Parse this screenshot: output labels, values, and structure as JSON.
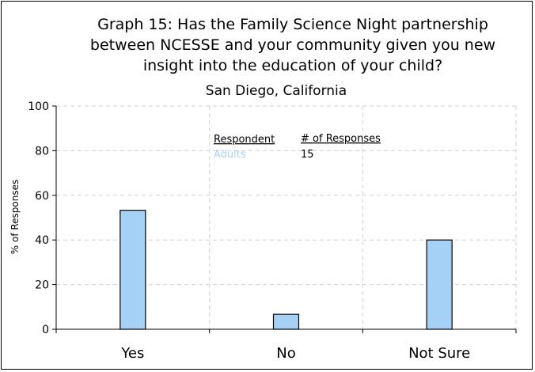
{
  "chart_data": {
    "type": "bar",
    "title_lines": [
      "Graph 15: Has the Family Science Night partnership",
      "between NCESSE and your community given you new",
      "insight into the education of your child?"
    ],
    "subtitle": "San Diego, California",
    "ylabel": "% of Responses",
    "xlabel": "",
    "ylim": [
      0,
      100
    ],
    "yticks": [
      0,
      20,
      40,
      60,
      80,
      100
    ],
    "categories": [
      "Yes",
      "No",
      "Not Sure"
    ],
    "values": [
      53.3,
      6.7,
      40.0
    ],
    "grid": true,
    "bar_color": "#a6d1f7",
    "legend": {
      "col1_header": "Respondent",
      "col2_header": "# of Responses",
      "respondent": "Adults",
      "responses": "15",
      "respondent_color": "#a6d1f7"
    }
  }
}
